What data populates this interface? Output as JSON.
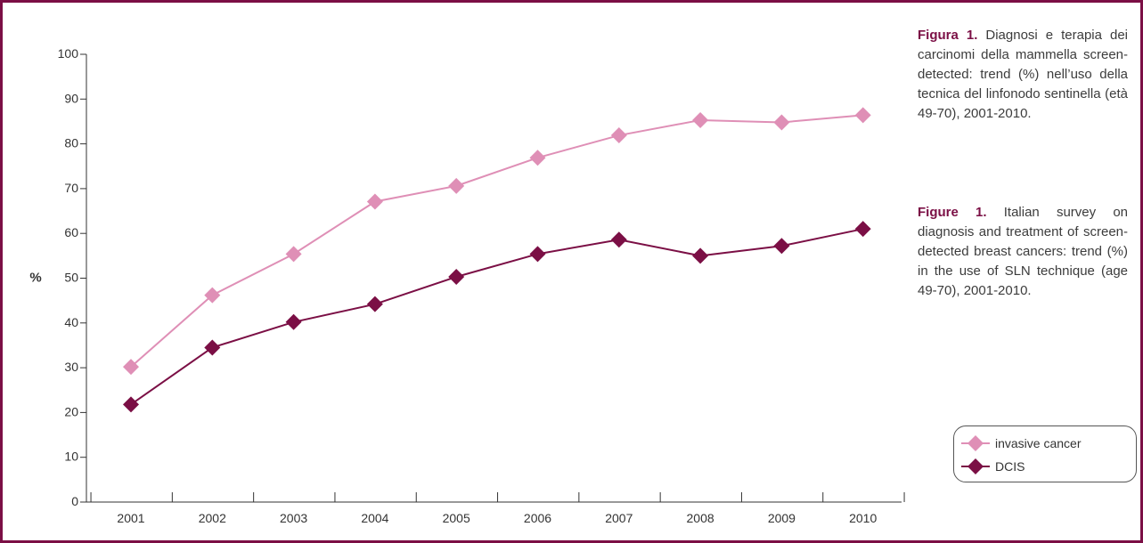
{
  "colors": {
    "frame": "#7b0f45",
    "invasive": "#df8fb6",
    "dcis": "#7b0f45"
  },
  "chart_data": {
    "type": "line",
    "x": [
      "2001",
      "2002",
      "2003",
      "2004",
      "2005",
      "2006",
      "2007",
      "2008",
      "2009",
      "2010"
    ],
    "series": [
      {
        "name": "invasive cancer",
        "marker": "diamond",
        "values": [
          30.2,
          46.2,
          55.4,
          67.1,
          70.6,
          76.9,
          81.9,
          85.3,
          84.8,
          86.4
        ]
      },
      {
        "name": "DCIS",
        "marker": "diamond",
        "values": [
          21.8,
          34.5,
          40.2,
          44.2,
          50.3,
          55.4,
          58.6,
          55.0,
          57.2,
          61.0
        ]
      }
    ],
    "ylabel": "%",
    "xlabel": "",
    "ylim": [
      0,
      100
    ],
    "yticks": [
      0,
      10,
      20,
      30,
      40,
      50,
      60,
      70,
      80,
      90,
      100
    ],
    "grid": false,
    "legend_position": "bottom-right"
  },
  "caption": {
    "it_label": "Figura 1.",
    "it_text": " Diagnosi e terapia dei carcinomi della mammella screen-detected: trend (%) nell’uso della tecnica del linfonodo sentinella (età 49-70), 2001-2010.",
    "en_label": "Figure 1.",
    "en_text": " Italian survey on diagnosis and treatment of screen-detected breast cancers: trend (%) in the use of SLN technique (age 49-70), 2001-2010."
  },
  "legend": {
    "items": [
      {
        "label": "invasive cancer"
      },
      {
        "label": "DCIS"
      }
    ]
  }
}
